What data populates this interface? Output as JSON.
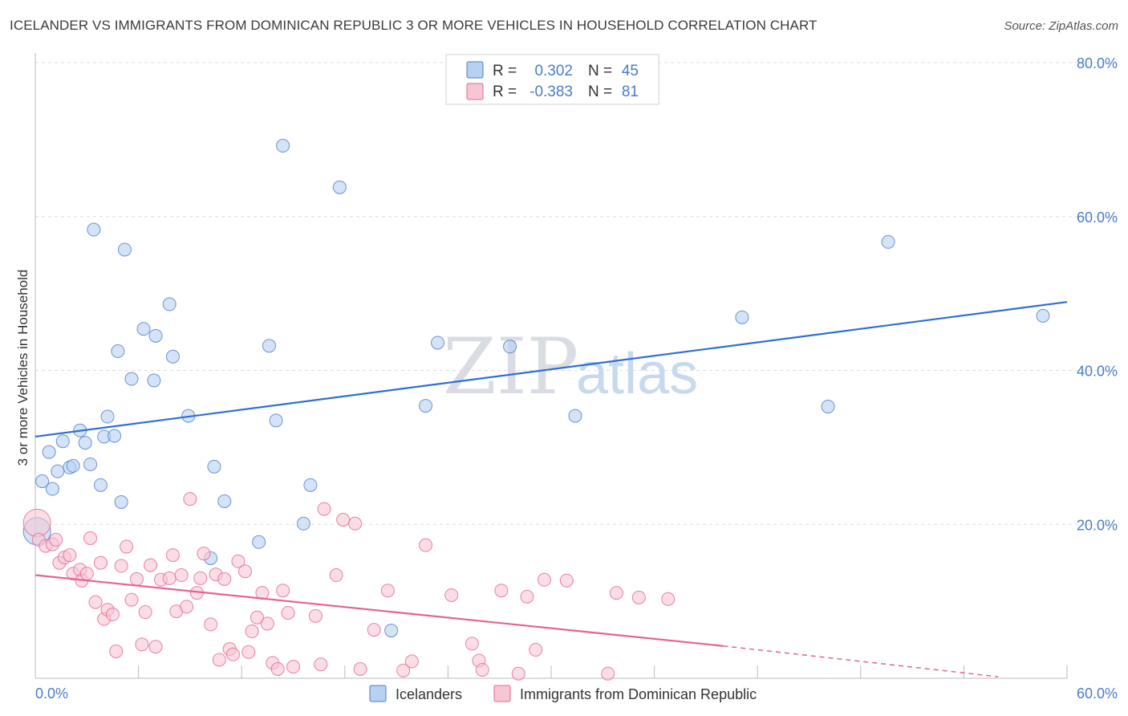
{
  "chart_data": {
    "type": "scatter",
    "title": "ICELANDER VS IMMIGRANTS FROM DOMINICAN REPUBLIC 3 OR MORE VEHICLES IN HOUSEHOLD CORRELATION CHART",
    "source": "Source: ZipAtlas.com",
    "xlabel": "",
    "ylabel": "3 or more Vehicles in Household",
    "xlim": [
      0,
      60
    ],
    "ylim": [
      0,
      80
    ],
    "x_tick_labels": [
      "0.0%",
      "60.0%"
    ],
    "y_ticks": [
      20,
      40,
      60,
      80
    ],
    "y_tick_labels": [
      "20.0%",
      "40.0%",
      "60.0%",
      "80.0%"
    ],
    "grid": true,
    "watermark": {
      "zip": "ZIP",
      "atlas": "atlas"
    },
    "colors": {
      "blue": "#4a7cc9",
      "blue_fill": "#b8d1f0",
      "blue_line": "#2f6fcf",
      "pink_fill": "#f7c6d4",
      "pink_line": "#e3648f",
      "grid": "#dcdcdc",
      "axis": "#bbbbbb"
    },
    "stats": [
      {
        "r_label": "R =",
        "r_value": "0.302",
        "n_label": "N =",
        "n_value": "45"
      },
      {
        "r_label": "R =",
        "r_value": "-0.383",
        "n_label": "N =",
        "n_value": "81"
      }
    ],
    "series": [
      {
        "name": "Icelanders",
        "color": "#4a7cc9",
        "trend": {
          "x0": 0,
          "y0": 31.4,
          "x1": 60,
          "y1": 48.9
        },
        "points": [
          [
            0.1,
            19.1
          ],
          [
            0.4,
            25.6
          ],
          [
            0.8,
            29.4
          ],
          [
            1.0,
            24.6
          ],
          [
            1.3,
            26.9
          ],
          [
            1.6,
            30.8
          ],
          [
            2.0,
            27.4
          ],
          [
            2.2,
            27.6
          ],
          [
            2.6,
            32.2
          ],
          [
            2.9,
            30.6
          ],
          [
            3.2,
            27.8
          ],
          [
            3.4,
            58.3
          ],
          [
            3.8,
            25.1
          ],
          [
            4.0,
            31.4
          ],
          [
            4.2,
            34.0
          ],
          [
            4.6,
            31.5
          ],
          [
            4.8,
            42.5
          ],
          [
            5.0,
            22.9
          ],
          [
            5.2,
            55.7
          ],
          [
            5.6,
            38.9
          ],
          [
            6.3,
            45.4
          ],
          [
            6.9,
            38.7
          ],
          [
            7.0,
            44.5
          ],
          [
            7.8,
            48.6
          ],
          [
            8.0,
            41.8
          ],
          [
            8.9,
            34.1
          ],
          [
            10.2,
            15.6
          ],
          [
            10.4,
            27.5
          ],
          [
            11.0,
            23.0
          ],
          [
            13.0,
            17.7
          ],
          [
            13.6,
            43.2
          ],
          [
            14.0,
            33.5
          ],
          [
            14.4,
            69.2
          ],
          [
            15.6,
            20.1
          ],
          [
            16.0,
            25.1
          ],
          [
            17.7,
            63.8
          ],
          [
            20.7,
            6.2
          ],
          [
            22.7,
            35.4
          ],
          [
            23.4,
            43.6
          ],
          [
            27.6,
            43.1
          ],
          [
            31.4,
            34.1
          ],
          [
            41.1,
            46.9
          ],
          [
            46.1,
            35.3
          ],
          [
            49.6,
            56.7
          ],
          [
            58.6,
            47.1
          ]
        ]
      },
      {
        "name": "Immigrants from Dominican Republic",
        "color": "#e3648f",
        "trend": {
          "x0": 0,
          "y0": 13.4,
          "x1": 40,
          "y1": 4.2,
          "dash_to_x": 56,
          "dash_to_y": 0.2
        },
        "points": [
          [
            0.1,
            20.2
          ],
          [
            0.2,
            18.0
          ],
          [
            0.6,
            17.2
          ],
          [
            1.0,
            17.4
          ],
          [
            1.2,
            18.0
          ],
          [
            1.4,
            15.0
          ],
          [
            1.7,
            15.7
          ],
          [
            2.0,
            16.0
          ],
          [
            2.2,
            13.6
          ],
          [
            2.6,
            14.1
          ],
          [
            2.7,
            12.7
          ],
          [
            3.0,
            13.6
          ],
          [
            3.2,
            18.2
          ],
          [
            3.5,
            9.9
          ],
          [
            3.8,
            15.0
          ],
          [
            4.0,
            7.7
          ],
          [
            4.2,
            8.9
          ],
          [
            4.5,
            8.3
          ],
          [
            4.7,
            3.5
          ],
          [
            5.0,
            14.6
          ],
          [
            5.3,
            17.1
          ],
          [
            5.6,
            10.2
          ],
          [
            5.9,
            12.9
          ],
          [
            6.2,
            4.4
          ],
          [
            6.4,
            8.6
          ],
          [
            6.7,
            14.7
          ],
          [
            7.0,
            4.1
          ],
          [
            7.3,
            12.8
          ],
          [
            7.8,
            13.0
          ],
          [
            8.0,
            16.0
          ],
          [
            8.2,
            8.7
          ],
          [
            8.5,
            13.4
          ],
          [
            8.8,
            9.3
          ],
          [
            9.0,
            23.3
          ],
          [
            9.4,
            11.1
          ],
          [
            9.6,
            13.0
          ],
          [
            9.8,
            16.2
          ],
          [
            10.2,
            7.0
          ],
          [
            10.5,
            13.5
          ],
          [
            10.7,
            2.4
          ],
          [
            11.0,
            12.9
          ],
          [
            11.3,
            3.8
          ],
          [
            11.5,
            3.1
          ],
          [
            11.8,
            15.2
          ],
          [
            12.2,
            13.9
          ],
          [
            12.4,
            3.4
          ],
          [
            12.6,
            6.1
          ],
          [
            12.9,
            7.9
          ],
          [
            13.2,
            11.1
          ],
          [
            13.5,
            7.1
          ],
          [
            13.8,
            2.0
          ],
          [
            14.1,
            1.2
          ],
          [
            14.4,
            11.4
          ],
          [
            14.7,
            8.5
          ],
          [
            15.0,
            1.5
          ],
          [
            16.3,
            8.1
          ],
          [
            16.6,
            1.8
          ],
          [
            16.8,
            22.0
          ],
          [
            17.5,
            13.4
          ],
          [
            17.9,
            20.6
          ],
          [
            18.6,
            20.1
          ],
          [
            18.9,
            1.2
          ],
          [
            19.7,
            6.3
          ],
          [
            20.5,
            11.4
          ],
          [
            21.4,
            1.0
          ],
          [
            21.9,
            2.2
          ],
          [
            22.7,
            17.3
          ],
          [
            24.2,
            10.8
          ],
          [
            25.4,
            4.5
          ],
          [
            25.8,
            2.3
          ],
          [
            26.0,
            1.1
          ],
          [
            27.1,
            11.4
          ],
          [
            28.1,
            0.6
          ],
          [
            28.6,
            10.6
          ],
          [
            29.1,
            3.7
          ],
          [
            29.6,
            12.8
          ],
          [
            30.9,
            12.7
          ],
          [
            33.3,
            0.6
          ],
          [
            33.8,
            11.1
          ],
          [
            35.1,
            10.5
          ],
          [
            36.8,
            10.3
          ]
        ]
      }
    ]
  }
}
